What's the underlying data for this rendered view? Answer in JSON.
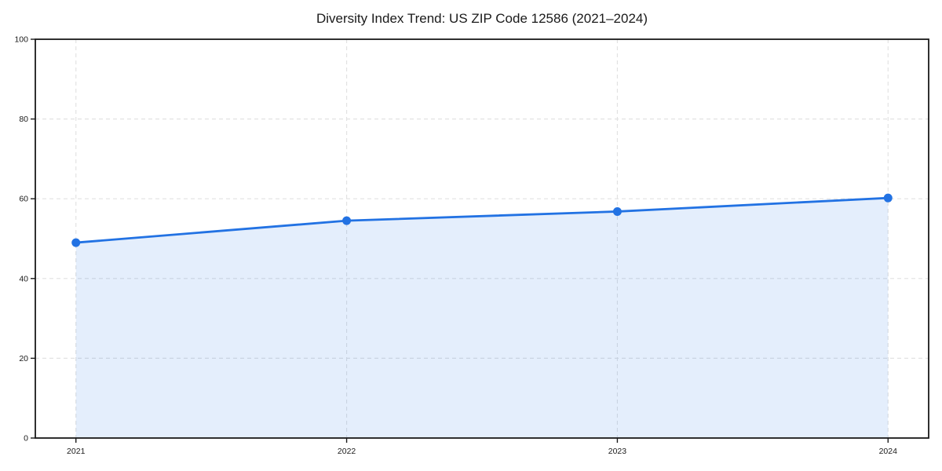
{
  "chart_data": {
    "type": "line",
    "title": "Diversity Index Trend: US ZIP Code 12586 (2021–2024)",
    "x": [
      2021,
      2022,
      2023,
      2024
    ],
    "x_tick_labels": [
      "2021",
      "2022",
      "2023",
      "2024"
    ],
    "series": [
      {
        "name": "Diversity Index",
        "values": [
          49,
          54.5,
          56.8,
          60.2
        ]
      }
    ],
    "xlabel": "",
    "ylabel": "",
    "ylim": [
      0,
      100
    ],
    "yticks": [
      0,
      20,
      40,
      60,
      80,
      100
    ],
    "ytick_labels": [
      "0",
      "20",
      "40",
      "60",
      "80",
      "100"
    ],
    "x_margin_frac": 0.05,
    "grid": true,
    "grid_style": "dashed",
    "legend_position": "none",
    "marker": "circle",
    "colors": {
      "line": "#2272e3",
      "marker": "#2272e3",
      "fill": "#2272e3",
      "fill_opacity": 0.12,
      "grid": "#e2e2e2",
      "axis": "#1a1a1a",
      "text": "#1a1a1a",
      "background": "#ffffff"
    }
  }
}
